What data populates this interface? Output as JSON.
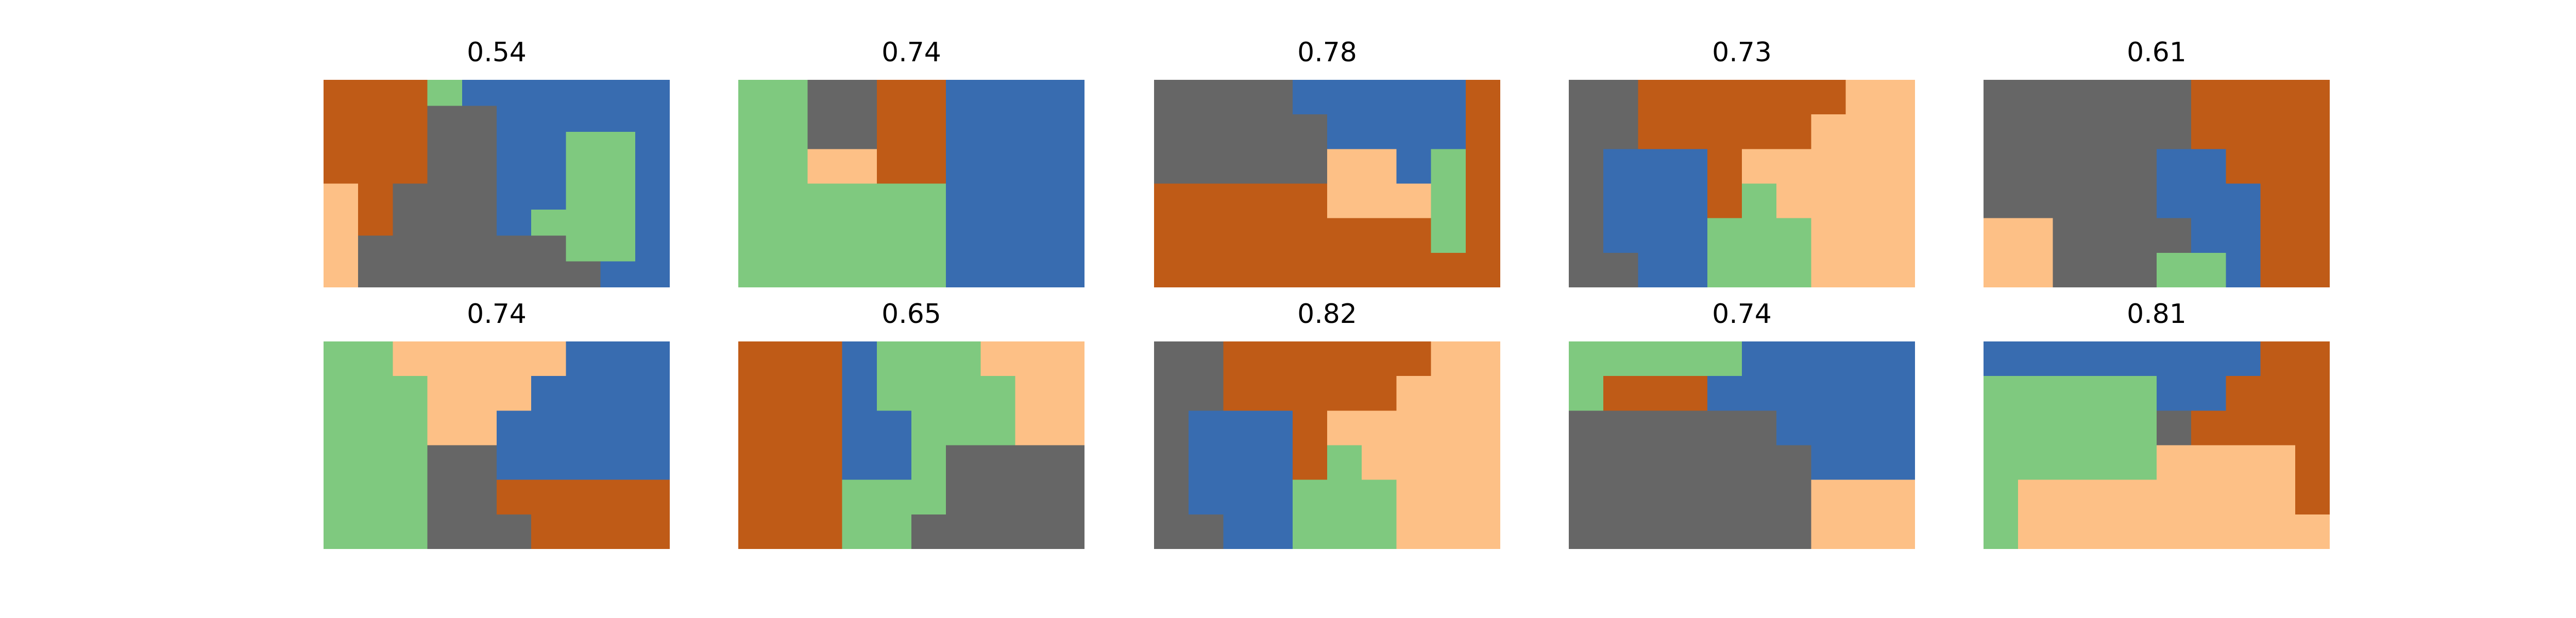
{
  "colors": {
    "N": "#666666",
    "O": "#BF5B17",
    "B": "#386CB0",
    "G": "#7FC97F",
    "P": "#FDC086"
  },
  "panels": [
    {
      "title": "0.54",
      "grid": [
        "OOOGBBBBBB",
        "OOONNBBBBB",
        "OOONNBBGGB",
        "OOONNBBGGB",
        "PONNNBBGGB",
        "PONNNBGGGB",
        "PNNNNNNGGB",
        "PNNNNNNNBB"
      ]
    },
    {
      "title": "0.74",
      "grid": [
        "GGNNOOBBBB",
        "GGNNOOBBBB",
        "GGPPOOBBBB",
        "GGGGGGBBBB",
        "GGGGGGBBBB",
        "GGGGGGBBBB"
      ]
    },
    {
      "title": "0.78",
      "grid": [
        "NNNNBBBBBO",
        "NNNNNBBBBO",
        "NNNNNPPBGO",
        "OOOOOPPPGO",
        "OOOOOOOOGO",
        "OOOOOOOOOO"
      ]
    },
    {
      "title": "0.73",
      "grid": [
        "NNOOOOOOPP",
        "NNOOOOOPPP",
        "NBBBOPPPPP",
        "NBBBOGPPPP",
        "NBBBGGGPPP",
        "NNBBGGGPPP"
      ]
    },
    {
      "title": "0.61",
      "grid": [
        "NNNNNNOOOO",
        "NNNNNNOOOO",
        "NNNNNBBOOO",
        "NNNNNBBBOO",
        "PPNNNNBBOO",
        "PPNNNGGBOO"
      ]
    },
    {
      "title": "0.74",
      "grid": [
        "GGPPPPPBBB",
        "GGGPPPBBBB",
        "GGGPPBBBBB",
        "GGGNNBBBBB",
        "GGGNNOOOOO",
        "GGGNNNOOOO"
      ]
    },
    {
      "title": "0.65",
      "grid": [
        "OOOBGGGPPP",
        "OOOBGGGGPP",
        "OOOBBGGGPP",
        "OOOBBGNNNN",
        "OOOGGGNNNN",
        "OOOGGNNNNN"
      ]
    },
    {
      "title": "0.82",
      "grid": [
        "NNOOOOOOPP",
        "NNOOOOOPPP",
        "NBBBOPPPPP",
        "NBBBOGPPPP",
        "NBBBGGGPPP",
        "NNBBGGGPPP"
      ]
    },
    {
      "title": "0.74",
      "grid": [
        "GGGGGBBBBB",
        "GOOOBBBBBB",
        "NNNNNNBBBB",
        "NNNNNNNBBB",
        "NNNNNNNPPP",
        "NNNNNNNPPP"
      ]
    },
    {
      "title": "0.81",
      "grid": [
        "BBBBBBBBOO",
        "GGGGGBBOOO",
        "GGGGGNOOOO",
        "GGGGGPPPPO",
        "GPPPPPPPPO",
        "GPPPPPPPPP"
      ]
    }
  ]
}
